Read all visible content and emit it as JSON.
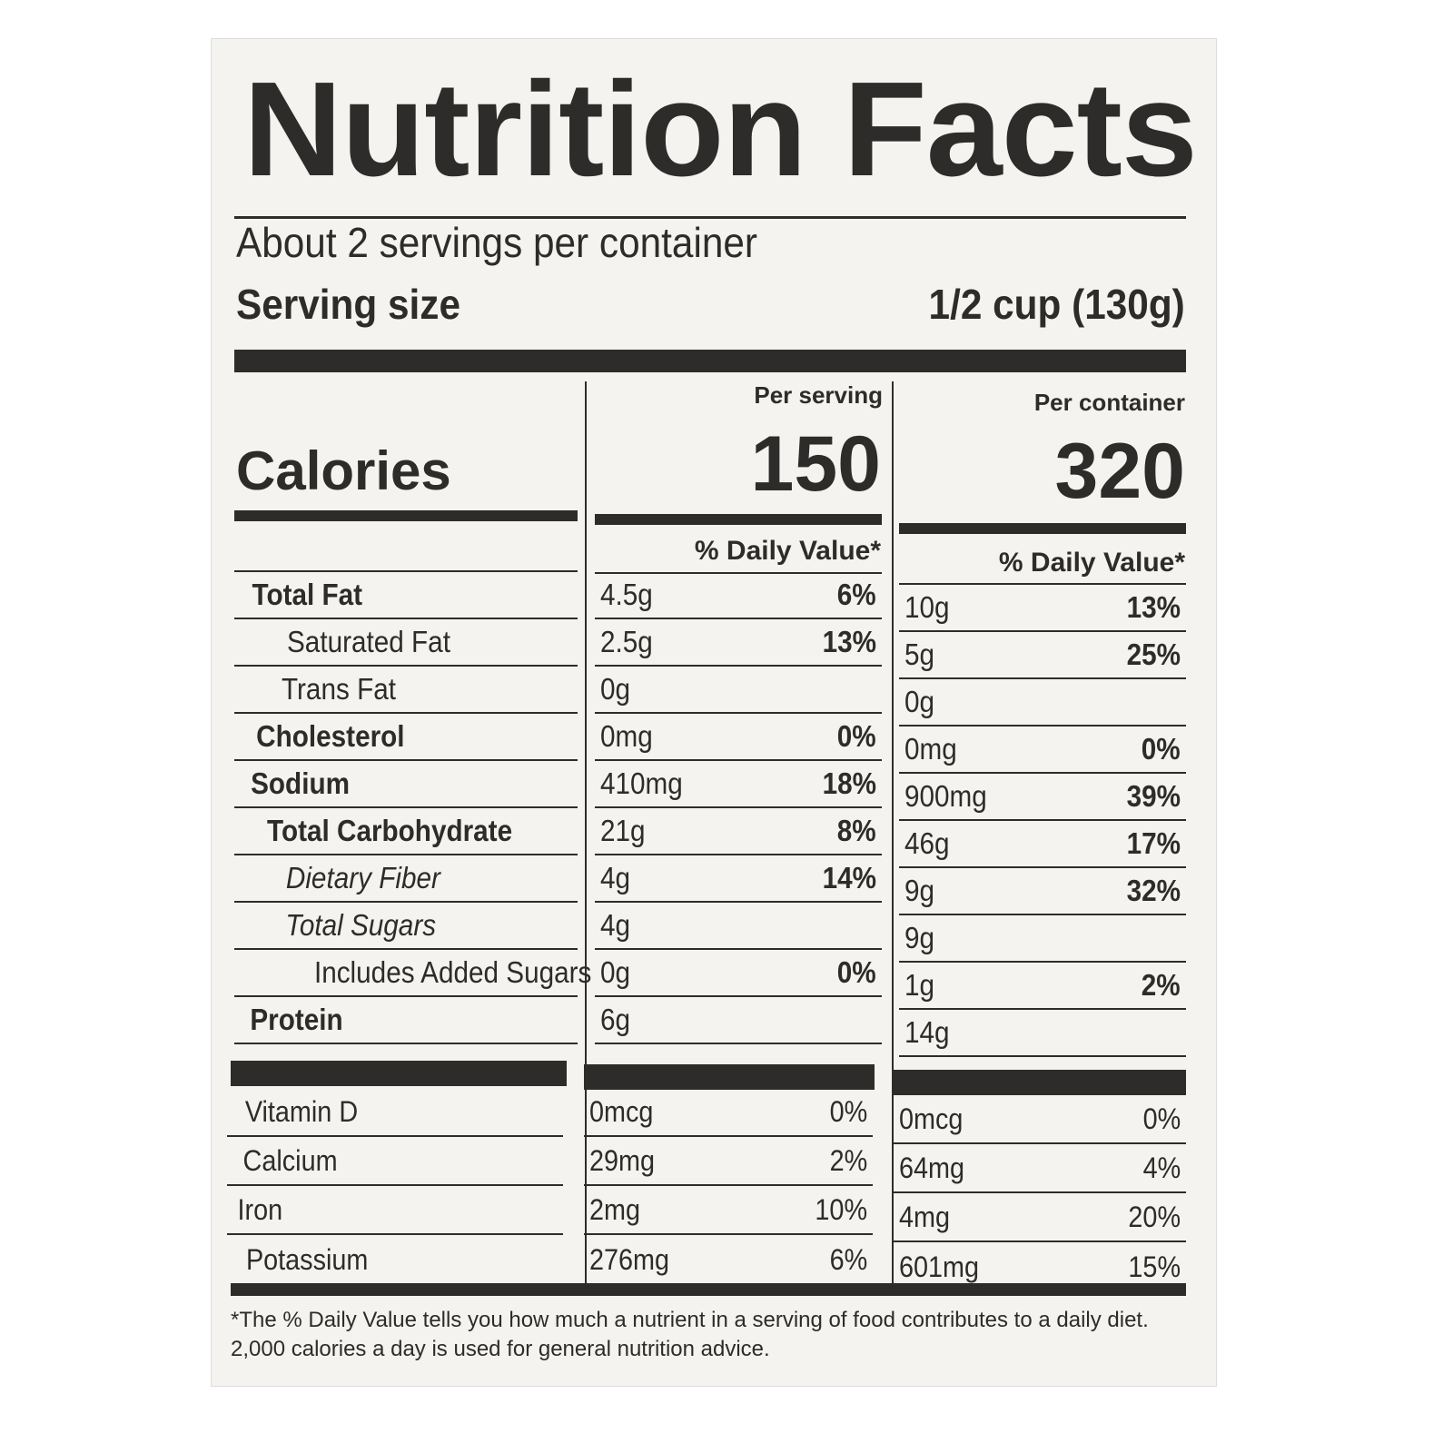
{
  "title": "Nutrition Facts",
  "servings_per_container": "About 2 servings per container",
  "serving_size_label": "Serving size",
  "serving_size_value": "1/2 cup (130g)",
  "calories_label": "Calories",
  "per_serving_label": "Per serving",
  "per_container_label": "Per container",
  "calories_per_serving": "150",
  "calories_per_container": "320",
  "daily_value_header": "% Daily Value*",
  "nutrients": [
    {
      "name": "Total Fat",
      "style": "bold",
      "indent": 0,
      "serving_amount": "4.5g",
      "serving_dv": "6%",
      "container_amount": "10g",
      "container_dv": "13%"
    },
    {
      "name": "Saturated Fat",
      "style": "normal",
      "indent": 1,
      "serving_amount": "2.5g",
      "serving_dv": "13%",
      "container_amount": "5g",
      "container_dv": "25%"
    },
    {
      "name": "Trans Fat",
      "style": "normal",
      "indent": 1,
      "serving_amount": "0g",
      "serving_dv": "",
      "container_amount": "0g",
      "container_dv": ""
    },
    {
      "name": "Cholesterol",
      "style": "bold",
      "indent": 0,
      "serving_amount": "0mg",
      "serving_dv": "0%",
      "container_amount": "0mg",
      "container_dv": "0%"
    },
    {
      "name": "Sodium",
      "style": "bold",
      "indent": 0,
      "serving_amount": "410mg",
      "serving_dv": "18%",
      "container_amount": "900mg",
      "container_dv": "39%"
    },
    {
      "name": "Total Carbohydrate",
      "style": "bold",
      "indent": 0,
      "serving_amount": "21g",
      "serving_dv": "8%",
      "container_amount": "46g",
      "container_dv": "17%"
    },
    {
      "name": "Dietary Fiber",
      "style": "italic",
      "indent": 1,
      "serving_amount": "4g",
      "serving_dv": "14%",
      "container_amount": "9g",
      "container_dv": "32%"
    },
    {
      "name": "Total Sugars",
      "style": "italic",
      "indent": 1,
      "serving_amount": "4g",
      "serving_dv": "",
      "container_amount": "9g",
      "container_dv": ""
    },
    {
      "name": "Includes Added Sugars",
      "style": "normal",
      "indent": 2,
      "serving_amount": "0g",
      "serving_dv": "0%",
      "container_amount": "1g",
      "container_dv": "2%"
    },
    {
      "name": "Protein",
      "style": "bold",
      "indent": 0,
      "serving_amount": "6g",
      "serving_dv": "",
      "container_amount": "14g",
      "container_dv": ""
    }
  ],
  "vitamins": [
    {
      "name": "Vitamin D",
      "serving_amount": "0mcg",
      "serving_dv": "0%",
      "container_amount": "0mcg",
      "container_dv": "0%"
    },
    {
      "name": "Calcium",
      "serving_amount": "29mg",
      "serving_dv": "2%",
      "container_amount": "64mg",
      "container_dv": "4%"
    },
    {
      "name": "Iron",
      "serving_amount": "2mg",
      "serving_dv": "10%",
      "container_amount": "4mg",
      "container_dv": "20%"
    },
    {
      "name": "Potassium",
      "serving_amount": "276mg",
      "serving_dv": "6%",
      "container_amount": "601mg",
      "container_dv": "15%"
    }
  ],
  "footnote_line1": "*The % Daily Value tells you how much a nutrient in a serving of food contributes to a daily diet.",
  "footnote_line2": "2,000 calories a day is used for general nutrition advice."
}
